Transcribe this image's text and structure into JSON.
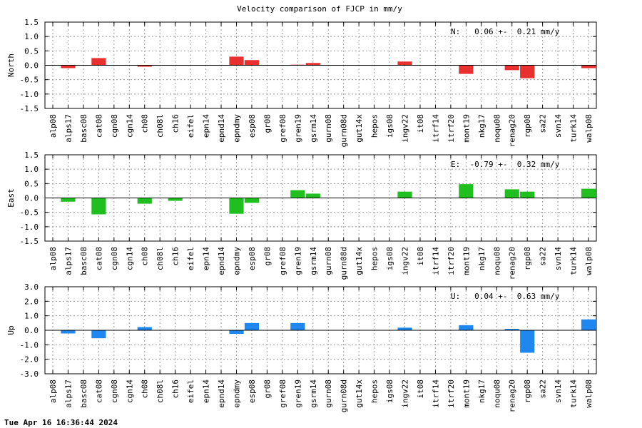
{
  "title": "Velocity comparison of FJCP in mm/y",
  "timestamp": "Tue Apr 16 16:36:44 2024",
  "chart_data": [
    {
      "type": "bar",
      "ylabel": "North",
      "color": "#e8302f",
      "ylim": [
        -1.5,
        1.5
      ],
      "yticks": [
        1.5,
        1.0,
        0.5,
        0.0,
        -0.5,
        -1.0,
        -1.5
      ],
      "ytick_labels": [
        "1.5",
        "1.0",
        "0.5",
        "0.0",
        "-0.5",
        "-1.0",
        "-1.5"
      ],
      "summary": "N:   0.06 +-  0.21 mm/y",
      "grid": true,
      "categories": [
        "alp08",
        "alps17",
        "basc08",
        "cat08",
        "cgn08",
        "cgn14",
        "ch08",
        "ch08l",
        "ch16",
        "eifel",
        "epn14",
        "epnd14",
        "epndmy",
        "esp08",
        "gr08",
        "gref08",
        "gren19",
        "gsrm14",
        "gurn08",
        "gurn08d",
        "gut14x",
        "hepos",
        "igs08",
        "ingv22",
        "it08",
        "itrf14",
        "itrf20",
        "mont19",
        "nkg17",
        "noqu08",
        "renag20",
        "rgp08",
        "sa22",
        "svn14",
        "turk14",
        "walp08"
      ],
      "values": [
        0,
        -0.1,
        0,
        0.25,
        0,
        0,
        -0.05,
        0,
        0,
        0,
        0,
        0,
        0.3,
        0.18,
        0,
        0,
        0.02,
        0.08,
        0,
        0,
        0,
        0,
        0,
        0.13,
        0,
        0,
        0,
        -0.3,
        0,
        0,
        -0.17,
        -0.45,
        0,
        0,
        0,
        -0.1
      ]
    },
    {
      "type": "bar",
      "ylabel": "East",
      "color": "#1fbf1f",
      "ylim": [
        -1.5,
        1.5
      ],
      "yticks": [
        1.5,
        1.0,
        0.5,
        0.0,
        -0.5,
        -1.0,
        -1.5
      ],
      "ytick_labels": [
        "1.5",
        "1.0",
        "0.5",
        "0.0",
        "-0.5",
        "-1.0",
        "-1.5"
      ],
      "summary": "E:  -0.79 +-  0.32 mm/y",
      "grid": true,
      "categories": [
        "alp08",
        "alps17",
        "basc08",
        "cat08",
        "cgn08",
        "cgn14",
        "ch08",
        "ch08l",
        "ch16",
        "eifel",
        "epn14",
        "epnd14",
        "epndmy",
        "esp08",
        "gr08",
        "gref08",
        "gren19",
        "gsrm14",
        "gurn08",
        "gurn08d",
        "gut14x",
        "hepos",
        "igs08",
        "ingv22",
        "it08",
        "itrf14",
        "itrf20",
        "mont19",
        "nkg17",
        "noqu08",
        "renag20",
        "rgp08",
        "sa22",
        "svn14",
        "turk14",
        "walp08"
      ],
      "values": [
        0,
        -0.13,
        0,
        -0.57,
        0,
        0,
        -0.2,
        0,
        -0.1,
        0,
        0,
        0,
        -0.55,
        -0.17,
        0,
        0,
        0.27,
        0.15,
        0,
        0,
        0,
        0,
        0,
        0.22,
        0,
        0,
        0,
        0.48,
        0,
        0,
        0.3,
        0.22,
        0,
        0,
        0,
        0.32
      ]
    },
    {
      "type": "bar",
      "ylabel": "Up",
      "color": "#1e88f0",
      "ylim": [
        -3.0,
        3.0
      ],
      "yticks": [
        3.0,
        2.0,
        1.0,
        0.0,
        -1.0,
        -2.0,
        -3.0
      ],
      "ytick_labels": [
        "3.0",
        "2.0",
        "1.0",
        "0.0",
        "-1.0",
        "-2.0",
        "-3.0"
      ],
      "summary": "U:   0.04 +-  0.63 mm/y",
      "grid": true,
      "categories": [
        "alp08",
        "alps17",
        "basc08",
        "cat08",
        "cgn08",
        "cgn14",
        "ch08",
        "ch08l",
        "ch16",
        "eifel",
        "epn14",
        "epnd14",
        "epndmy",
        "esp08",
        "gr08",
        "gref08",
        "gren19",
        "gsrm14",
        "gurn08",
        "gurn08d",
        "gut14x",
        "hepos",
        "igs08",
        "ingv22",
        "it08",
        "itrf14",
        "itrf20",
        "mont19",
        "nkg17",
        "noqu08",
        "renag20",
        "rgp08",
        "sa22",
        "svn14",
        "turk14",
        "walp08"
      ],
      "values": [
        0,
        -0.22,
        0,
        -0.55,
        0,
        0,
        0.22,
        0,
        0,
        0,
        0,
        0,
        -0.25,
        0.5,
        0,
        0,
        0.5,
        0,
        0,
        0,
        0,
        0,
        0,
        0.18,
        0,
        0,
        0,
        0.35,
        0,
        0,
        0.1,
        -1.55,
        0,
        0,
        0,
        0.75
      ]
    }
  ]
}
